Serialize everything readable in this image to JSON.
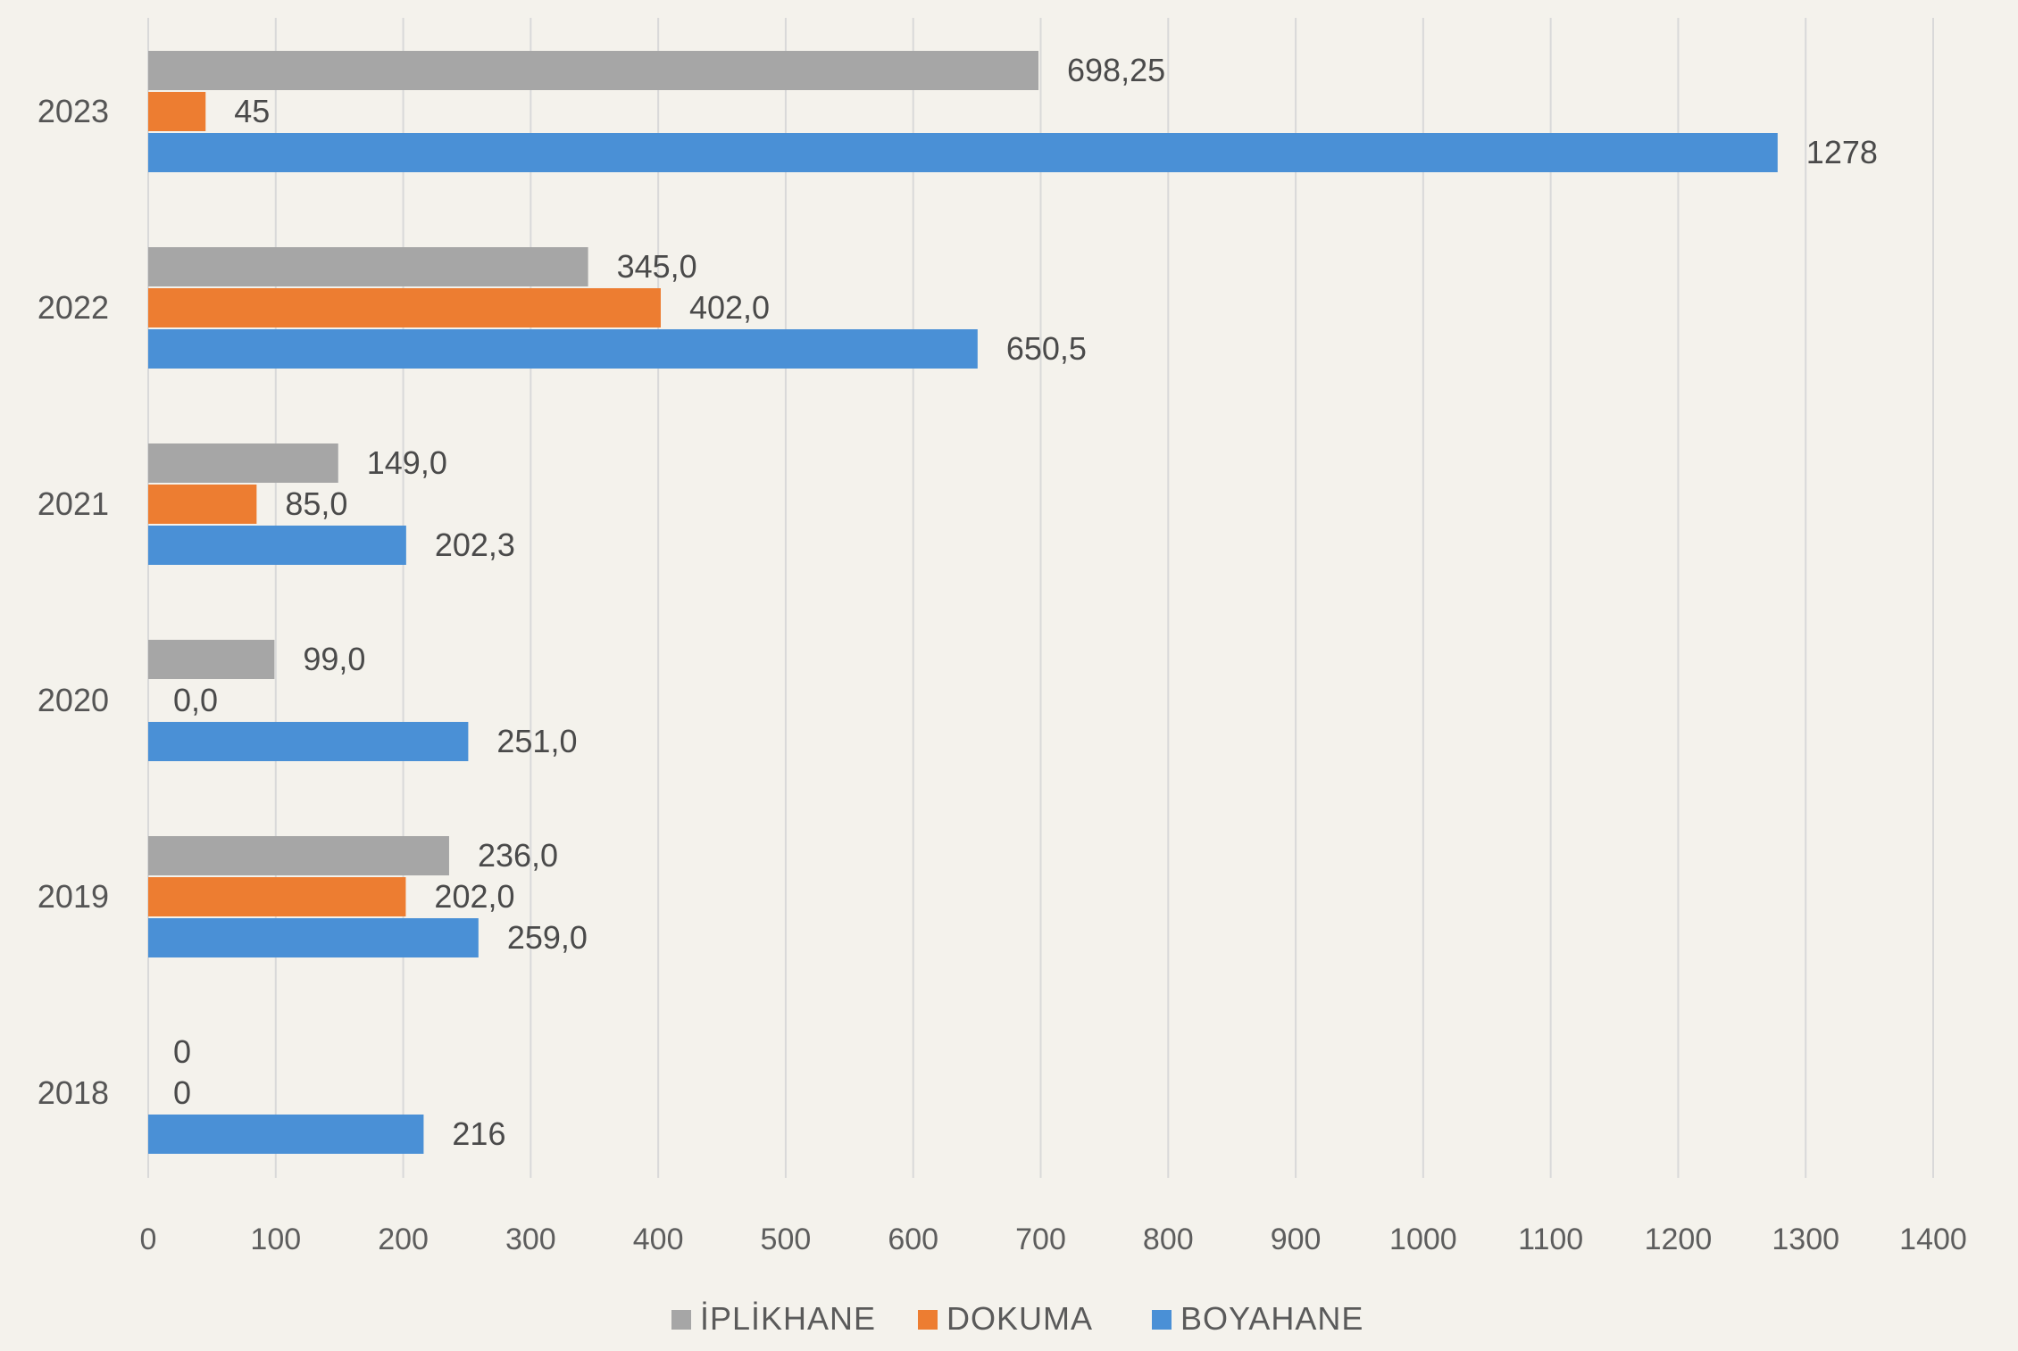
{
  "chart_data": {
    "type": "bar",
    "orientation": "horizontal",
    "categories": [
      "2023",
      "2022",
      "2021",
      "2020",
      "2019",
      "2018"
    ],
    "series": [
      {
        "name": "İPLİKHANE",
        "color": "#a6a6a6",
        "values": [
          698.25,
          345.0,
          149.0,
          99.0,
          236.0,
          0
        ],
        "labels": [
          "698,25",
          "345,0",
          "149,0",
          "99,0",
          "236,0",
          "0"
        ]
      },
      {
        "name": "DOKUMA",
        "color": "#ed7d31",
        "values": [
          45,
          402.0,
          85.0,
          0.0,
          202.0,
          0
        ],
        "labels": [
          "45",
          "402,0",
          "85,0",
          "0,0",
          "202,0",
          "0"
        ]
      },
      {
        "name": "BOYAHANE",
        "color": "#4a90d6",
        "values": [
          1278,
          650.5,
          202.3,
          251.0,
          259.0,
          216
        ],
        "labels": [
          "1278",
          "650,5",
          "202,3",
          "251,0",
          "259,0",
          "216"
        ]
      }
    ],
    "xlim": [
      0,
      1400
    ],
    "x_ticks": [
      "0",
      "100",
      "200",
      "300",
      "400",
      "500",
      "600",
      "700",
      "800",
      "900",
      "1000",
      "1100",
      "1200",
      "1300",
      "1400"
    ],
    "grid": true,
    "legend_position": "bottom",
    "title": "",
    "xlabel": "",
    "ylabel": ""
  }
}
